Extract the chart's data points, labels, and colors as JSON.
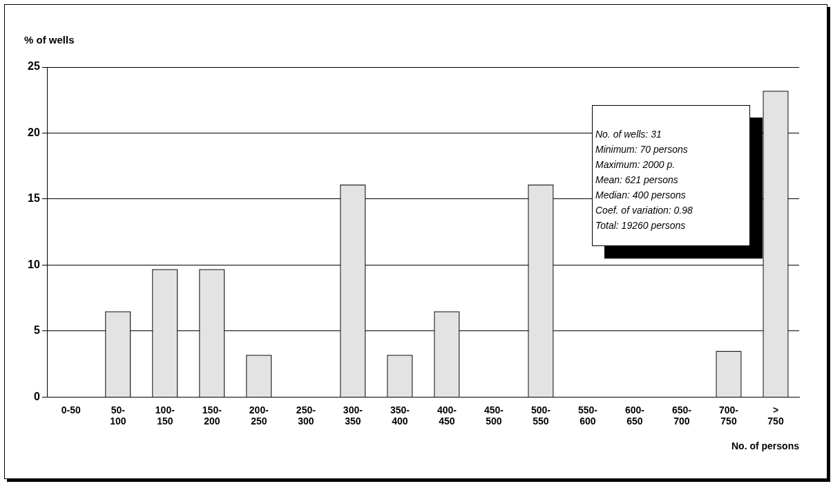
{
  "chart_data": {
    "type": "bar",
    "ylabel": "% of wells",
    "xlabel": "No. of persons",
    "categories": [
      "0-50",
      "50- 100",
      "100- 150",
      "150- 200",
      "200- 250",
      "250- 300",
      "300- 350",
      "350- 400",
      "400- 450",
      "450- 500",
      "500- 550",
      "550- 600",
      "600- 650",
      "650- 700",
      "700- 750",
      "> 750"
    ],
    "values": [
      0,
      6.5,
      9.7,
      9.7,
      3.2,
      0,
      16.1,
      3.2,
      6.5,
      0,
      16.1,
      0,
      0,
      0,
      3.5,
      23.2
    ],
    "color": "#e3e3e3",
    "ylim": [
      0,
      25
    ],
    "yticks": [
      0,
      5,
      10,
      15,
      20,
      25
    ],
    "grid": "y",
    "legend": false,
    "annotations": [
      "No. of wells: 31",
      "Minimum: 70 persons",
      "Maximum: 2000 p.",
      "Mean: 621 persons",
      "Median: 400 persons",
      "Coef. of variation: 0.98",
      "Total: 19260 persons"
    ]
  }
}
